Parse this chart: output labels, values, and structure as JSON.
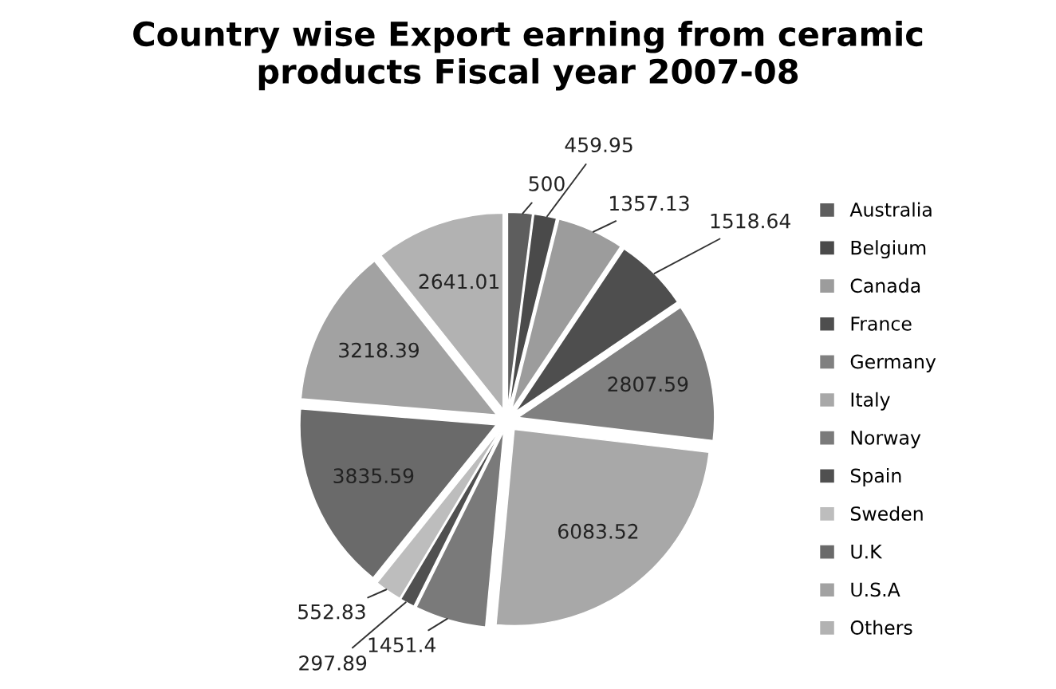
{
  "chart_data": {
    "type": "pie",
    "title": "Country wise Export earning from ceramic\nproducts Fiscal year 2007-08",
    "categories": [
      "Australia",
      "Belgium",
      "Canada",
      "France",
      "Germany",
      "Italy",
      "Norway",
      "Spain",
      "Sweden",
      "U.K",
      "U.S.A",
      "Others"
    ],
    "values": [
      500,
      459.95,
      1357.13,
      1518.64,
      2807.59,
      6083.52,
      1451.4,
      297.89,
      552.83,
      3835.59,
      3218.39,
      2641.01
    ],
    "colors": [
      "#5e5e5e",
      "#4a4a4a",
      "#9c9c9c",
      "#4e4e4e",
      "#808080",
      "#a8a8a8",
      "#7a7a7a",
      "#505050",
      "#bdbdbd",
      "#6a6a6a",
      "#a2a2a2",
      "#b2b2b2"
    ],
    "data_labels": true,
    "legend": "right"
  }
}
